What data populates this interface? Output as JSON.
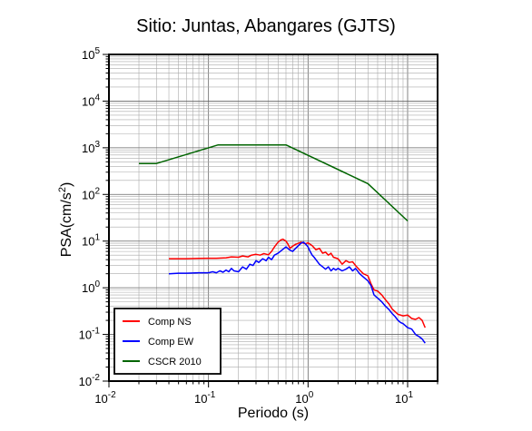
{
  "chart_data": {
    "type": "line",
    "title": "Sitio: Juntas, Abangares (GJTS)",
    "xlabel": "Periodo (s)",
    "ylabel_main": "PSA(cm/s",
    "ylabel_sup": "2",
    "ylabel_end": ")",
    "xscale": "log",
    "yscale": "log",
    "xlim": [
      0.01,
      20
    ],
    "ylim": [
      0.01,
      100000
    ],
    "grid": true,
    "legend_position": "bottom-left",
    "x_ticks": [
      {
        "value": 0.01,
        "base": "10",
        "exp": "-2"
      },
      {
        "value": 0.1,
        "base": "10",
        "exp": "-1"
      },
      {
        "value": 1,
        "base": "10",
        "exp": "0"
      },
      {
        "value": 10,
        "base": "10",
        "exp": "1"
      }
    ],
    "y_ticks": [
      {
        "value": 0.01,
        "base": "10",
        "exp": "-2"
      },
      {
        "value": 0.1,
        "base": "10",
        "exp": "-1"
      },
      {
        "value": 1,
        "base": "10",
        "exp": "0"
      },
      {
        "value": 10,
        "base": "10",
        "exp": "1"
      },
      {
        "value": 100,
        "base": "10",
        "exp": "2"
      },
      {
        "value": 1000,
        "base": "10",
        "exp": "3"
      },
      {
        "value": 10000,
        "base": "10",
        "exp": "4"
      },
      {
        "value": 100000,
        "base": "10",
        "exp": "5"
      }
    ],
    "series": [
      {
        "name": "Comp NS",
        "color": "#ff0000",
        "points": [
          [
            0.04,
            4.2
          ],
          [
            0.05,
            4.2
          ],
          [
            0.06,
            4.2
          ],
          [
            0.08,
            4.25
          ],
          [
            0.1,
            4.3
          ],
          [
            0.12,
            4.3
          ],
          [
            0.15,
            4.4
          ],
          [
            0.17,
            4.6
          ],
          [
            0.2,
            4.5
          ],
          [
            0.22,
            4.8
          ],
          [
            0.25,
            4.6
          ],
          [
            0.27,
            5.0
          ],
          [
            0.3,
            5.2
          ],
          [
            0.33,
            5.0
          ],
          [
            0.36,
            5.4
          ],
          [
            0.4,
            5.1
          ],
          [
            0.43,
            6.0
          ],
          [
            0.46,
            7.5
          ],
          [
            0.5,
            9.5
          ],
          [
            0.53,
            10.5
          ],
          [
            0.56,
            11.0
          ],
          [
            0.6,
            10.0
          ],
          [
            0.63,
            8.5
          ],
          [
            0.66,
            7.0
          ],
          [
            0.7,
            7.8
          ],
          [
            0.75,
            8.5
          ],
          [
            0.8,
            9.0
          ],
          [
            0.85,
            9.5
          ],
          [
            0.9,
            9.0
          ],
          [
            0.95,
            8.8
          ],
          [
            1.0,
            9.2
          ],
          [
            1.1,
            8.0
          ],
          [
            1.2,
            6.5
          ],
          [
            1.3,
            7.0
          ],
          [
            1.4,
            5.5
          ],
          [
            1.5,
            5.8
          ],
          [
            1.6,
            5.0
          ],
          [
            1.7,
            5.5
          ],
          [
            1.8,
            4.5
          ],
          [
            2.0,
            4.2
          ],
          [
            2.2,
            3.2
          ],
          [
            2.4,
            3.8
          ],
          [
            2.6,
            3.5
          ],
          [
            2.8,
            3.6
          ],
          [
            3.0,
            3.0
          ],
          [
            3.3,
            2.4
          ],
          [
            3.6,
            2.0
          ],
          [
            4.0,
            1.8
          ],
          [
            4.3,
            1.2
          ],
          [
            4.6,
            0.9
          ],
          [
            5.0,
            0.85
          ],
          [
            5.5,
            0.7
          ],
          [
            6.0,
            0.55
          ],
          [
            6.5,
            0.45
          ],
          [
            7.0,
            0.35
          ],
          [
            8.0,
            0.27
          ],
          [
            9.0,
            0.25
          ],
          [
            10.0,
            0.26
          ],
          [
            11.0,
            0.22
          ],
          [
            12.0,
            0.21
          ],
          [
            13.0,
            0.23
          ],
          [
            14.0,
            0.2
          ],
          [
            15.0,
            0.14
          ]
        ]
      },
      {
        "name": "Comp EW",
        "color": "#0000ff",
        "points": [
          [
            0.04,
            2.0
          ],
          [
            0.05,
            2.05
          ],
          [
            0.06,
            2.05
          ],
          [
            0.08,
            2.1
          ],
          [
            0.1,
            2.1
          ],
          [
            0.11,
            2.2
          ],
          [
            0.12,
            2.1
          ],
          [
            0.13,
            2.3
          ],
          [
            0.14,
            2.15
          ],
          [
            0.15,
            2.4
          ],
          [
            0.16,
            2.2
          ],
          [
            0.17,
            2.6
          ],
          [
            0.18,
            2.3
          ],
          [
            0.2,
            2.2
          ],
          [
            0.22,
            2.8
          ],
          [
            0.24,
            2.5
          ],
          [
            0.26,
            3.2
          ],
          [
            0.28,
            3.0
          ],
          [
            0.3,
            3.8
          ],
          [
            0.32,
            3.5
          ],
          [
            0.35,
            4.2
          ],
          [
            0.38,
            3.8
          ],
          [
            0.4,
            4.5
          ],
          [
            0.43,
            4.0
          ],
          [
            0.46,
            5.0
          ],
          [
            0.5,
            5.5
          ],
          [
            0.55,
            6.5
          ],
          [
            0.6,
            7.5
          ],
          [
            0.65,
            6.5
          ],
          [
            0.7,
            6.0
          ],
          [
            0.75,
            7.0
          ],
          [
            0.8,
            8.0
          ],
          [
            0.85,
            9.0
          ],
          [
            0.9,
            9.5
          ],
          [
            0.95,
            8.5
          ],
          [
            1.0,
            7.5
          ],
          [
            1.05,
            6.0
          ],
          [
            1.1,
            5.0
          ],
          [
            1.15,
            4.5
          ],
          [
            1.2,
            4.0
          ],
          [
            1.3,
            3.2
          ],
          [
            1.4,
            2.8
          ],
          [
            1.5,
            2.5
          ],
          [
            1.6,
            2.8
          ],
          [
            1.7,
            2.3
          ],
          [
            1.8,
            2.6
          ],
          [
            1.9,
            2.4
          ],
          [
            2.0,
            2.6
          ],
          [
            2.2,
            2.3
          ],
          [
            2.4,
            2.5
          ],
          [
            2.6,
            2.8
          ],
          [
            2.8,
            2.3
          ],
          [
            3.0,
            2.6
          ],
          [
            3.3,
            2.0
          ],
          [
            3.6,
            1.7
          ],
          [
            4.0,
            1.4
          ],
          [
            4.3,
            1.1
          ],
          [
            4.6,
            0.7
          ],
          [
            5.0,
            0.6
          ],
          [
            5.5,
            0.5
          ],
          [
            6.0,
            0.4
          ],
          [
            6.5,
            0.34
          ],
          [
            7.0,
            0.28
          ],
          [
            7.5,
            0.24
          ],
          [
            8.0,
            0.2
          ],
          [
            8.5,
            0.18
          ],
          [
            9.0,
            0.17
          ],
          [
            10.0,
            0.14
          ],
          [
            11.0,
            0.13
          ],
          [
            12.0,
            0.1
          ],
          [
            13.0,
            0.09
          ],
          [
            14.0,
            0.08
          ],
          [
            15.0,
            0.065
          ]
        ]
      },
      {
        "name": "CSCR 2010",
        "color": "#006400",
        "points": [
          [
            0.02,
            460
          ],
          [
            0.03,
            460
          ],
          [
            0.125,
            1150
          ],
          [
            0.6,
            1150
          ],
          [
            4.0,
            170
          ],
          [
            10.0,
            27
          ]
        ]
      }
    ]
  }
}
